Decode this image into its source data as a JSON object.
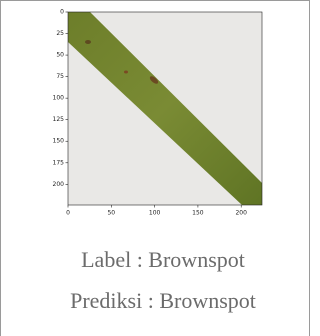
{
  "chart_data": {
    "type": "image",
    "xlim": [
      0,
      224
    ],
    "ylim": [
      224,
      0
    ],
    "xticks": [
      0,
      50,
      100,
      150,
      200
    ],
    "yticks": [
      0,
      25,
      50,
      75,
      100,
      125,
      150,
      175,
      200
    ]
  },
  "label_text": "Label : Brownspot",
  "prediction_text": "Prediksi : Brownspot"
}
